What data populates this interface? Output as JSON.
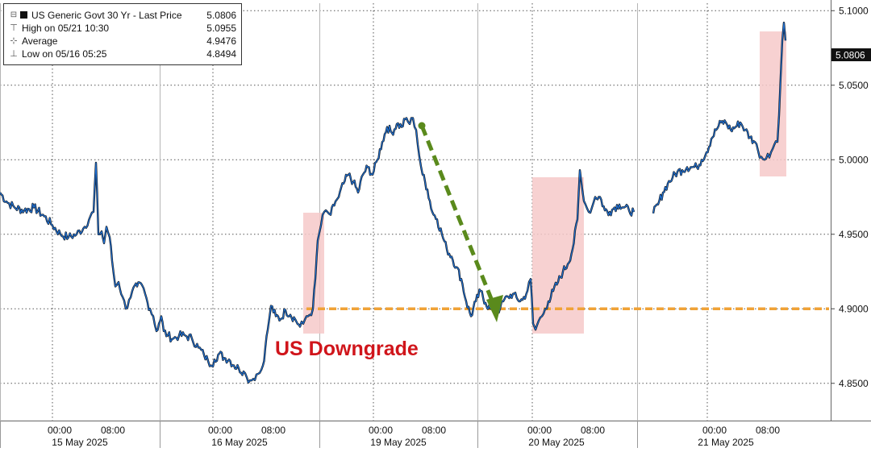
{
  "chart_data": {
    "type": "line",
    "legend": {
      "title": "US Generic Govt 30 Yr - Last Price",
      "last_price": "5.0806",
      "high_label": "High on 05/21 10:30",
      "high_value": "5.0955",
      "avg_label": "Average",
      "avg_value": "4.9476",
      "low_label": "Low on 05/16 05:25",
      "low_value": "4.8494"
    },
    "last_price_tag": "5.0806",
    "ylim": [
      4.825,
      5.105
    ],
    "y_ticks": [
      "5.1000",
      "5.0500",
      "5.0000",
      "4.9500",
      "4.9000",
      "4.8500"
    ],
    "y_tick_values": [
      5.1,
      5.05,
      5.0,
      4.95,
      4.9,
      4.85
    ],
    "x_tick_labels": [
      "00:00",
      "08:00",
      "00:00",
      "08:00",
      "00:00",
      "08:00",
      "00:00",
      "08:00",
      "00:00",
      "08:00"
    ],
    "x_day_labels": [
      "15 May 2025",
      "16 May 2025",
      "19 May 2025",
      "20 May 2025",
      "21 May 2025"
    ],
    "grid": true,
    "reference_level": 4.9,
    "annotation": "US Downgrade",
    "series": [
      {
        "values": [
          [
            0,
            4.978
          ],
          [
            8,
            4.972
          ],
          [
            18,
            4.968
          ],
          [
            30,
            4.966
          ],
          [
            42,
            4.968
          ],
          [
            55,
            4.962
          ],
          [
            65,
            4.956
          ],
          [
            75,
            4.95
          ],
          [
            85,
            4.948
          ],
          [
            95,
            4.95
          ],
          [
            105,
            4.955
          ],
          [
            112,
            4.962
          ],
          [
            116,
            4.965
          ],
          [
            119,
            4.998
          ],
          [
            122,
            4.95
          ],
          [
            126,
            4.952
          ],
          [
            129,
            4.944
          ],
          [
            132,
            4.955
          ],
          [
            136,
            4.948
          ],
          [
            139,
            4.932
          ],
          [
            143,
            4.915
          ],
          [
            147,
            4.918
          ],
          [
            152,
            4.908
          ],
          [
            156,
            4.9
          ],
          [
            160,
            4.906
          ],
          [
            164,
            4.912
          ],
          [
            170,
            4.915
          ],
          [
            176,
            4.916
          ],
          [
            180,
            4.91
          ],
          [
            183,
            4.904
          ],
          [
            186,
            4.9
          ],
          [
            190,
            4.895
          ],
          [
            194,
            4.885
          ],
          [
            197,
            4.89
          ],
          [
            200,
            4.895
          ],
          [
            203,
            4.885
          ],
          [
            208,
            4.882
          ],
          [
            215,
            4.88
          ],
          [
            222,
            4.882
          ],
          [
            230,
            4.882
          ],
          [
            238,
            4.88
          ],
          [
            246,
            4.874
          ],
          [
            253,
            4.869
          ],
          [
            258,
            4.865
          ],
          [
            262,
            4.862
          ],
          [
            266,
            4.866
          ],
          [
            272,
            4.87
          ],
          [
            278,
            4.867
          ],
          [
            284,
            4.866
          ],
          [
            290,
            4.862
          ],
          [
            296,
            4.86
          ],
          [
            302,
            4.858
          ],
          [
            306,
            4.854
          ],
          [
            310,
            4.852
          ],
          [
            314,
            4.853
          ],
          [
            318,
            4.856
          ],
          [
            322,
            4.857
          ],
          [
            326,
            4.862
          ],
          [
            329,
            4.874
          ],
          [
            332,
            4.886
          ],
          [
            336,
            4.902
          ],
          [
            342,
            4.895
          ],
          [
            348,
            4.893
          ],
          [
            354,
            4.899
          ],
          [
            360,
            4.896
          ],
          [
            366,
            4.893
          ],
          [
            372,
            4.888
          ],
          [
            376,
            4.89
          ],
          [
            380,
            4.895
          ],
          [
            384,
            4.896
          ],
          [
            388,
            4.9
          ],
          [
            391,
            4.92
          ],
          [
            394,
            4.946
          ],
          [
            398,
            4.956
          ],
          [
            402,
            4.965
          ],
          [
            406,
            4.965
          ],
          [
            410,
            4.963
          ],
          [
            416,
            4.972
          ],
          [
            420,
            4.975
          ],
          [
            426,
            4.984
          ],
          [
            432,
            4.99
          ],
          [
            438,
            4.985
          ],
          [
            444,
            4.978
          ],
          [
            450,
            4.99
          ],
          [
            456,
            4.995
          ],
          [
            462,
            4.99
          ],
          [
            468,
            5.0
          ],
          [
            474,
            5.012
          ],
          [
            480,
            5.022
          ],
          [
            486,
            5.018
          ],
          [
            492,
            5.024
          ],
          [
            498,
            5.022
          ],
          [
            504,
            5.028
          ],
          [
            508,
            5.024
          ],
          [
            512,
            5.028
          ],
          [
            516,
            5.02
          ],
          [
            520,
            5.002
          ],
          [
            524,
            4.99
          ],
          [
            530,
            4.98
          ],
          [
            536,
            4.965
          ],
          [
            542,
            4.96
          ],
          [
            548,
            4.95
          ],
          [
            554,
            4.94
          ],
          [
            560,
            4.935
          ],
          [
            566,
            4.928
          ],
          [
            572,
            4.92
          ],
          [
            578,
            4.905
          ],
          [
            584,
            4.895
          ],
          [
            590,
            4.905
          ],
          [
            596,
            4.912
          ],
          [
            602,
            4.904
          ],
          [
            608,
            4.9
          ],
          [
            614,
            4.898
          ],
          [
            620,
            4.9
          ],
          [
            624,
            4.905
          ],
          [
            630,
            4.908
          ],
          [
            636,
            4.91
          ],
          [
            642,
            4.906
          ],
          [
            648,
            4.906
          ],
          [
            654,
            4.912
          ],
          [
            658,
            4.92
          ],
          [
            661,
            4.89
          ],
          [
            664,
            4.886
          ],
          [
            668,
            4.892
          ],
          [
            672,
            4.895
          ],
          [
            676,
            4.9
          ],
          [
            680,
            4.905
          ],
          [
            686,
            4.912
          ],
          [
            692,
            4.918
          ],
          [
            698,
            4.925
          ],
          [
            704,
            4.93
          ],
          [
            710,
            4.94
          ],
          [
            716,
            4.96
          ],
          [
            719,
            4.993
          ],
          [
            722,
            4.98
          ],
          [
            726,
            4.97
          ],
          [
            730,
            4.965
          ],
          [
            734,
            4.968
          ],
          [
            738,
            4.975
          ],
          [
            744,
            4.975
          ],
          [
            750,
            4.966
          ],
          [
            756,
            4.965
          ],
          [
            762,
            4.968
          ],
          [
            768,
            4.97
          ],
          [
            774,
            4.968
          ],
          [
            780,
            4.966
          ],
          [
            786,
            4.965
          ],
          [
            810,
            4.964
          ],
          [
            816,
            4.97
          ],
          [
            822,
            4.978
          ],
          [
            828,
            4.984
          ],
          [
            834,
            4.988
          ],
          [
            840,
            4.992
          ],
          [
            846,
            4.993
          ],
          [
            852,
            4.995
          ],
          [
            858,
            4.995
          ],
          [
            864,
            4.995
          ],
          [
            870,
            5.0
          ],
          [
            876,
            5.005
          ],
          [
            882,
            5.014
          ],
          [
            888,
            5.02
          ],
          [
            894,
            5.025
          ],
          [
            900,
            5.025
          ],
          [
            906,
            5.02
          ],
          [
            912,
            5.022
          ],
          [
            918,
            5.025
          ],
          [
            924,
            5.02
          ],
          [
            930,
            5.015
          ],
          [
            936,
            5.012
          ],
          [
            940,
            5.006
          ],
          [
            944,
            5.002
          ],
          [
            948,
            5.0
          ],
          [
            952,
            5.004
          ],
          [
            956,
            5.005
          ],
          [
            960,
            5.01
          ],
          [
            964,
            5.012
          ],
          [
            966,
            5.03
          ],
          [
            968,
            5.056
          ],
          [
            970,
            5.08
          ],
          [
            972,
            5.092
          ],
          [
            974,
            5.08
          ]
        ]
      }
    ],
    "colors": {
      "line": "#1f6fd1",
      "line_shadow": "#141414",
      "highlight_fill": "#f6c9c9",
      "arrow": "#5a8a1c",
      "dashed_level": "#f0a236",
      "annotation": "#d0151b",
      "tag_bg": "#111111",
      "tag_text": "#ffffff"
    }
  }
}
